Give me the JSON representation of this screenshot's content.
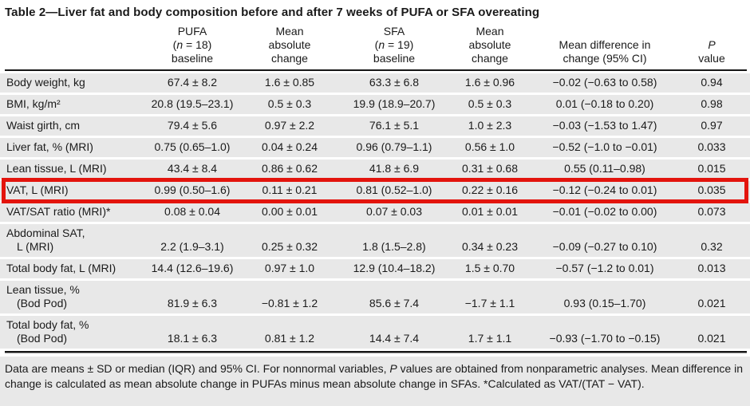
{
  "title": "Table 2—Liver fat and body composition before and after 7 weeks of PUFA or SFA overeating",
  "header": {
    "pufa": {
      "l1": "PUFA",
      "n_pre": "(",
      "n": "n",
      "n_post": " = 18)",
      "l3": "baseline"
    },
    "pufa_change": {
      "l1": "Mean",
      "l2": "absolute",
      "l3": "change"
    },
    "sfa": {
      "l1": "SFA",
      "n_pre": "(",
      "n": "n",
      "n_post": " = 19)",
      "l3": "baseline"
    },
    "sfa_change": {
      "l1": "Mean",
      "l2": "absolute",
      "l3": "change"
    },
    "mean_diff": {
      "l1": "Mean difference in",
      "l2": "change (95% CI)"
    },
    "p_value": {
      "l1": "P",
      "l2": "value"
    }
  },
  "rows": [
    {
      "label": "Body weight, kg",
      "pufa_baseline": "67.4 ± 8.2",
      "pufa_change": "1.6 ± 0.85",
      "sfa_baseline": "63.3 ± 6.8",
      "sfa_change": "1.6 ± 0.96",
      "mean_diff": "−0.02 (−0.63 to 0.58)",
      "p": "0.94"
    },
    {
      "label": "BMI, kg/m²",
      "pufa_baseline": "20.8 (19.5–23.1)",
      "pufa_change": "0.5 ± 0.3",
      "sfa_baseline": "19.9 (18.9–20.7)",
      "sfa_change": "0.5 ± 0.3",
      "mean_diff": "0.01 (−0.18 to 0.20)",
      "p": "0.98"
    },
    {
      "label": "Waist girth, cm",
      "pufa_baseline": "79.4 ± 5.6",
      "pufa_change": "0.97 ± 2.2",
      "sfa_baseline": "76.1 ± 5.1",
      "sfa_change": "1.0 ± 2.3",
      "mean_diff": "−0.03 (−1.53 to 1.47)",
      "p": "0.97"
    },
    {
      "label": "Liver fat, % (MRI)",
      "pufa_baseline": "0.75 (0.65–1.0)",
      "pufa_change": "0.04 ± 0.24",
      "sfa_baseline": "0.96 (0.79–1.1)",
      "sfa_change": "0.56 ± 1.0",
      "mean_diff": "−0.52 (−1.0 to −0.01)",
      "p": "0.033"
    },
    {
      "label": "Lean tissue, L (MRI)",
      "pufa_baseline": "43.4 ± 8.4",
      "pufa_change": "0.86 ± 0.62",
      "sfa_baseline": "41.8 ± 6.9",
      "sfa_change": "0.31 ± 0.68",
      "mean_diff": "0.55 (0.11–0.98)",
      "p": "0.015"
    },
    {
      "label": "VAT, L (MRI)",
      "pufa_baseline": "0.99 (0.50–1.6)",
      "pufa_change": "0.11 ± 0.21",
      "sfa_baseline": "0.81 (0.52–1.0)",
      "sfa_change": "0.22 ± 0.16",
      "mean_diff": "−0.12 (−0.24 to 0.01)",
      "p": "0.035",
      "highlight": true
    },
    {
      "label": "VAT/SAT ratio (MRI)*",
      "pufa_baseline": "0.08 ± 0.04",
      "pufa_change": "0.00 ± 0.01",
      "sfa_baseline": "0.07 ± 0.03",
      "sfa_change": "0.01 ± 0.01",
      "mean_diff": "−0.01 (−0.02 to 0.00)",
      "p": "0.073"
    },
    {
      "label": "Abdominal SAT,",
      "label2": "L (MRI)",
      "pufa_baseline": "2.2 (1.9–3.1)",
      "pufa_change": "0.25 ± 0.32",
      "sfa_baseline": "1.8 (1.5–2.8)",
      "sfa_change": "0.34 ± 0.23",
      "mean_diff": "−0.09 (−0.27 to 0.10)",
      "p": "0.32"
    },
    {
      "label": "Total body fat, L (MRI)",
      "pufa_baseline": "14.4 (12.6–19.6)",
      "pufa_change": "0.97 ± 1.0",
      "sfa_baseline": "12.9 (10.4–18.2)",
      "sfa_change": "1.5 ± 0.70",
      "mean_diff": "−0.57 (−1.2 to 0.01)",
      "p": "0.013"
    },
    {
      "label": "Lean tissue, %",
      "label2": "(Bod Pod)",
      "pufa_baseline": "81.9 ± 6.3",
      "pufa_change": "−0.81 ± 1.2",
      "sfa_baseline": "85.6 ± 7.4",
      "sfa_change": "−1.7 ± 1.1",
      "mean_diff": "0.93 (0.15–1.70)",
      "p": "0.021"
    },
    {
      "label": "Total body fat, %",
      "label2": "(Bod Pod)",
      "pufa_baseline": "18.1 ± 6.3",
      "pufa_change": "0.81 ± 1.2",
      "sfa_baseline": "14.4 ± 7.4",
      "sfa_change": "1.7 ± 1.1",
      "mean_diff": "−0.93 (−1.70 to −0.15)",
      "p": "0.021"
    }
  ],
  "footnote": {
    "part1": "Data are means ± SD or median (IQR) and 95% CI. For nonnormal variables, ",
    "p": "P",
    "part2": " values are obtained from nonparametric analyses. Mean difference in change is calculated as mean absolute change in PUFAs minus mean absolute change in SFAs. *Calculated as VAT/(TAT − VAT)."
  },
  "colors": {
    "highlight": "#e3140d",
    "row_bg": "#e8e8e8"
  }
}
